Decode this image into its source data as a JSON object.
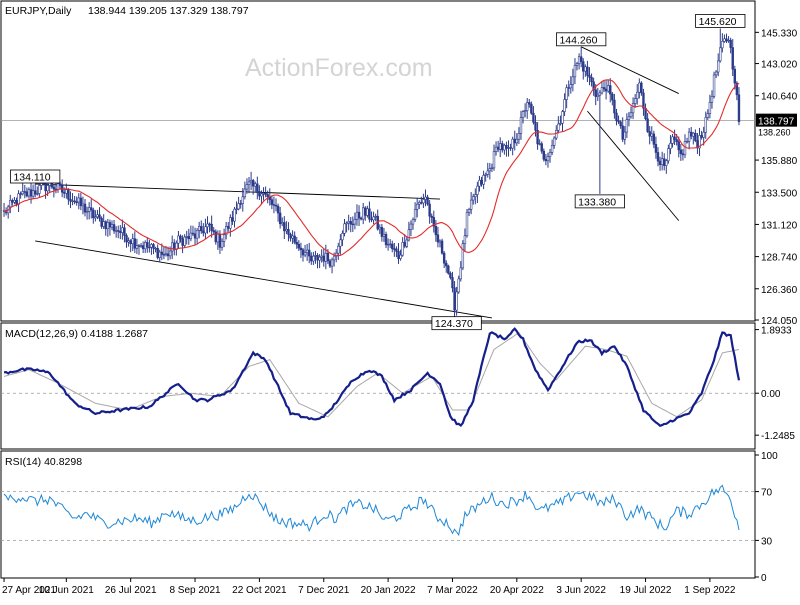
{
  "chart_data": {
    "type": "candlestick",
    "symbol_label": "EURJPY,Daily",
    "ohlc_label": "138.944 139.205 137.329 138.797",
    "watermark": "ActionForex.com",
    "last_price": 138.797,
    "last_price_label": "138.797",
    "ma_marker_label": "138.260",
    "x_tick_labels": [
      "27 Apr 2021",
      "10 Jun 2021",
      "26 Jul 2021",
      "8 Sep 2021",
      "22 Oct 2021",
      "7 Dec 2021",
      "20 Jan 2022",
      "7 Mar 2022",
      "20 Apr 2022",
      "3 Jun 2022",
      "19 Jul 2022",
      "1 Sep 2022"
    ],
    "x_tick_bar_index": [
      0,
      30,
      61,
      92,
      123,
      154,
      185,
      216,
      247,
      278,
      309,
      340
    ],
    "bar_count": 355,
    "main_panel": {
      "ylim": [
        124.05,
        147.5
      ],
      "y_ticks": [
        145.33,
        143.02,
        140.64,
        135.88,
        133.5,
        131.12,
        128.74,
        126.36,
        124.05
      ],
      "y_tick_labels": [
        "145.330",
        "143.020",
        "140.640",
        "135.880",
        "133.500",
        "131.120",
        "128.740",
        "126.360",
        "124.050"
      ],
      "close_anchors": [
        [
          0,
          132.0
        ],
        [
          8,
          133.2
        ],
        [
          15,
          133.6
        ],
        [
          22,
          134.1
        ],
        [
          30,
          133.4
        ],
        [
          38,
          132.4
        ],
        [
          46,
          131.4
        ],
        [
          55,
          130.7
        ],
        [
          63,
          129.8
        ],
        [
          70,
          129.4
        ],
        [
          78,
          128.8
        ],
        [
          84,
          129.9
        ],
        [
          92,
          130.3
        ],
        [
          98,
          131.0
        ],
        [
          104,
          129.8
        ],
        [
          110,
          131.6
        ],
        [
          114,
          133.1
        ],
        [
          118,
          134.0
        ],
        [
          124,
          133.6
        ],
        [
          130,
          132.4
        ],
        [
          136,
          130.6
        ],
        [
          142,
          129.6
        ],
        [
          148,
          128.4
        ],
        [
          153,
          128.8
        ],
        [
          158,
          128.4
        ],
        [
          163,
          130.8
        ],
        [
          168,
          131.4
        ],
        [
          173,
          132.0
        ],
        [
          178,
          131.6
        ],
        [
          184,
          129.8
        ],
        [
          190,
          128.8
        ],
        [
          194,
          130.3
        ],
        [
          199,
          132.5
        ],
        [
          203,
          133.2
        ],
        [
          207,
          130.6
        ],
        [
          211,
          129.2
        ],
        [
          214,
          127.6
        ],
        [
          217,
          125.2
        ],
        [
          220,
          128.2
        ],
        [
          223,
          131.6
        ],
        [
          228,
          133.8
        ],
        [
          234,
          135.2
        ],
        [
          238,
          137.1
        ],
        [
          243,
          136.4
        ],
        [
          248,
          138.1
        ],
        [
          252,
          140.3
        ],
        [
          256,
          137.9
        ],
        [
          260,
          135.7
        ],
        [
          264,
          137.2
        ],
        [
          268,
          139.0
        ],
        [
          272,
          141.5
        ],
        [
          277,
          143.4
        ],
        [
          281,
          142.2
        ],
        [
          286,
          140.6
        ],
        [
          290,
          141.4
        ],
        [
          294,
          139.6
        ],
        [
          298,
          137.5
        ],
        [
          302,
          139.4
        ],
        [
          306,
          141.4
        ],
        [
          310,
          138.4
        ],
        [
          314,
          136.6
        ],
        [
          318,
          135.2
        ],
        [
          322,
          137.4
        ],
        [
          326,
          136.2
        ],
        [
          330,
          137.8
        ],
        [
          334,
          137.2
        ],
        [
          338,
          138.6
        ],
        [
          342,
          141.8
        ],
        [
          346,
          144.4
        ],
        [
          349,
          145.0
        ],
        [
          352,
          142.0
        ],
        [
          354,
          138.8
        ]
      ],
      "lows_override": [
        [
          218,
          124.37
        ],
        [
          287,
          133.38
        ]
      ],
      "highs_override": [
        [
          15,
          134.11
        ],
        [
          278,
          144.26
        ],
        [
          345,
          145.62
        ]
      ],
      "ma_period": 20,
      "labeled_levels": [
        {
          "label": "134.110",
          "bar": 15,
          "price": 134.11,
          "position": "above"
        },
        {
          "label": "144.260",
          "bar": 278,
          "price": 144.26,
          "position": "above"
        },
        {
          "label": "145.620",
          "bar": 345,
          "price": 145.62,
          "position": "above"
        },
        {
          "label": "124.370",
          "bar": 218,
          "price": 124.37,
          "position": "below"
        },
        {
          "label": "133.380",
          "bar": 287,
          "price": 133.38,
          "position": "below"
        }
      ],
      "trendlines": [
        {
          "from": [
            15,
            134.11
          ],
          "to": [
            210,
            133.0
          ]
        },
        {
          "from": [
            15,
            129.9
          ],
          "to": [
            235,
            124.2
          ]
        },
        {
          "from": [
            278,
            144.26
          ],
          "to": [
            325,
            140.8
          ]
        },
        {
          "from": [
            281,
            139.5
          ],
          "to": [
            325,
            131.4
          ]
        }
      ]
    },
    "macd_panel": {
      "label": "MACD(12,26,9) 0.4188 1.2687",
      "ylim": [
        -1.6,
        2.0
      ],
      "y_ticks": [
        1.8933,
        0.0,
        -1.2485
      ],
      "y_tick_labels": [
        "1.8933",
        "0.00",
        "-1.2485"
      ],
      "main_anchors": [
        [
          0,
          0.6
        ],
        [
          8,
          0.7
        ],
        [
          15,
          0.7
        ],
        [
          22,
          0.6
        ],
        [
          34,
          -0.3
        ],
        [
          44,
          -0.6
        ],
        [
          56,
          -0.5
        ],
        [
          70,
          -0.4
        ],
        [
          84,
          0.3
        ],
        [
          92,
          -0.2
        ],
        [
          98,
          -0.2
        ],
        [
          110,
          0.1
        ],
        [
          120,
          1.2
        ],
        [
          126,
          1.0
        ],
        [
          138,
          -0.6
        ],
        [
          150,
          -0.8
        ],
        [
          156,
          -0.6
        ],
        [
          168,
          0.4
        ],
        [
          176,
          0.7
        ],
        [
          182,
          0.5
        ],
        [
          188,
          -0.2
        ],
        [
          196,
          0.1
        ],
        [
          204,
          0.6
        ],
        [
          210,
          0.3
        ],
        [
          215,
          -0.7
        ],
        [
          220,
          -1.0
        ],
        [
          226,
          -0.2
        ],
        [
          234,
          1.8
        ],
        [
          242,
          1.6
        ],
        [
          246,
          1.9
        ],
        [
          250,
          1.6
        ],
        [
          256,
          0.7
        ],
        [
          262,
          0.1
        ],
        [
          268,
          0.7
        ],
        [
          276,
          1.5
        ],
        [
          282,
          1.6
        ],
        [
          288,
          1.2
        ],
        [
          294,
          1.4
        ],
        [
          300,
          0.8
        ],
        [
          308,
          -0.5
        ],
        [
          316,
          -1.0
        ],
        [
          322,
          -0.8
        ],
        [
          330,
          -0.6
        ],
        [
          336,
          0.0
        ],
        [
          342,
          1.0
        ],
        [
          346,
          1.8
        ],
        [
          350,
          1.7
        ],
        [
          354,
          0.4
        ]
      ],
      "signal_anchors": [
        [
          0,
          0.5
        ],
        [
          12,
          0.7
        ],
        [
          26,
          0.3
        ],
        [
          44,
          -0.3
        ],
        [
          60,
          -0.5
        ],
        [
          76,
          -0.1
        ],
        [
          90,
          0.0
        ],
        [
          104,
          -0.1
        ],
        [
          118,
          0.8
        ],
        [
          128,
          1.0
        ],
        [
          142,
          -0.3
        ],
        [
          156,
          -0.7
        ],
        [
          170,
          0.2
        ],
        [
          180,
          0.6
        ],
        [
          192,
          0.0
        ],
        [
          206,
          0.5
        ],
        [
          216,
          -0.5
        ],
        [
          224,
          -0.5
        ],
        [
          236,
          1.3
        ],
        [
          248,
          1.8
        ],
        [
          258,
          0.9
        ],
        [
          266,
          0.4
        ],
        [
          280,
          1.4
        ],
        [
          290,
          1.3
        ],
        [
          300,
          1.1
        ],
        [
          312,
          -0.3
        ],
        [
          324,
          -0.7
        ],
        [
          336,
          -0.2
        ],
        [
          346,
          1.2
        ],
        [
          354,
          1.3
        ]
      ]
    },
    "rsi_panel": {
      "label": "RSI(14) 40.8298",
      "ylim": [
        0,
        100
      ],
      "y_ticks": [
        100,
        70,
        30,
        0
      ],
      "y_tick_labels": [
        "100",
        "70",
        "30",
        "0"
      ],
      "guides": [
        70,
        30
      ],
      "anchors": [
        [
          0,
          64
        ],
        [
          8,
          66
        ],
        [
          15,
          62
        ],
        [
          22,
          64
        ],
        [
          28,
          55
        ],
        [
          34,
          48
        ],
        [
          40,
          52
        ],
        [
          48,
          44
        ],
        [
          56,
          46
        ],
        [
          64,
          48
        ],
        [
          72,
          44
        ],
        [
          78,
          54
        ],
        [
          86,
          48
        ],
        [
          92,
          46
        ],
        [
          100,
          50
        ],
        [
          106,
          52
        ],
        [
          112,
          58
        ],
        [
          118,
          70
        ],
        [
          124,
          60
        ],
        [
          132,
          46
        ],
        [
          140,
          44
        ],
        [
          148,
          42
        ],
        [
          154,
          52
        ],
        [
          160,
          48
        ],
        [
          166,
          58
        ],
        [
          172,
          60
        ],
        [
          178,
          56
        ],
        [
          184,
          46
        ],
        [
          190,
          50
        ],
        [
          196,
          56
        ],
        [
          202,
          64
        ],
        [
          208,
          50
        ],
        [
          214,
          44
        ],
        [
          218,
          34
        ],
        [
          222,
          50
        ],
        [
          228,
          58
        ],
        [
          234,
          66
        ],
        [
          240,
          60
        ],
        [
          246,
          62
        ],
        [
          252,
          68
        ],
        [
          258,
          54
        ],
        [
          264,
          58
        ],
        [
          270,
          62
        ],
        [
          276,
          70
        ],
        [
          282,
          66
        ],
        [
          288,
          60
        ],
        [
          294,
          64
        ],
        [
          300,
          50
        ],
        [
          306,
          56
        ],
        [
          312,
          48
        ],
        [
          318,
          40
        ],
        [
          324,
          54
        ],
        [
          330,
          52
        ],
        [
          336,
          60
        ],
        [
          342,
          70
        ],
        [
          346,
          72
        ],
        [
          350,
          64
        ],
        [
          354,
          41
        ]
      ]
    },
    "colors": {
      "background": "#ffffff",
      "border": "#000000",
      "candle_up": "#2b3a8a",
      "candle_down": "#2b3a8a",
      "moving_average": "#e32b2b",
      "macd_line": "#141f8c",
      "signal_line": "#a8a8a8",
      "rsi_line": "#1f88d6",
      "guide": "#9a9a9a",
      "text": "#000000",
      "watermark": "#d4d4d4"
    }
  }
}
